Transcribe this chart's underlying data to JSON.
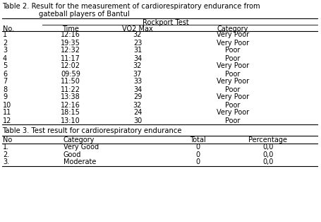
{
  "title_line1": "Table 2. Result for the measurement of cardiorespiratory endurance from",
  "title_line2": "gateball players of Bantul",
  "col_header_span": "Rockport Test",
  "col_headers": [
    "No.",
    "Time",
    "VO2 Max",
    "Category"
  ],
  "rows": [
    [
      "1",
      "12:16",
      "32",
      "Very Poor"
    ],
    [
      "2",
      "19:35",
      "23",
      "Very Poor"
    ],
    [
      "3",
      "12:32",
      "31",
      "Poor"
    ],
    [
      "4",
      "11:17",
      "34",
      "Poor"
    ],
    [
      "5",
      "12:02",
      "32",
      "Very Poor"
    ],
    [
      "6",
      "09:59",
      "37",
      "Poor"
    ],
    [
      "7",
      "11:50",
      "33",
      "Very Poor"
    ],
    [
      "8",
      "11:22",
      "34",
      "Poor"
    ],
    [
      "9",
      "13:38",
      "29",
      "Very Poor"
    ],
    [
      "10",
      "12:16",
      "32",
      "Poor"
    ],
    [
      "11",
      "18:15",
      "24",
      "Very Poor"
    ],
    [
      "12",
      "13:10",
      "30",
      "Poor"
    ]
  ],
  "table3_title": "Table 3. Test result for cardiorespiratory endurance",
  "table3_col_headers": [
    "No",
    "Category",
    "Total",
    "Percentage"
  ],
  "table3_rows": [
    [
      "1.",
      "Very Good",
      "0",
      "0,0"
    ],
    [
      "2.",
      "Good",
      "0",
      "0,0"
    ],
    [
      "3.",
      "Moderate",
      "0",
      "0,0"
    ]
  ],
  "bg_color": "#ffffff",
  "text_color": "#000000",
  "font_size": 7.0,
  "title_font_size": 7.2
}
